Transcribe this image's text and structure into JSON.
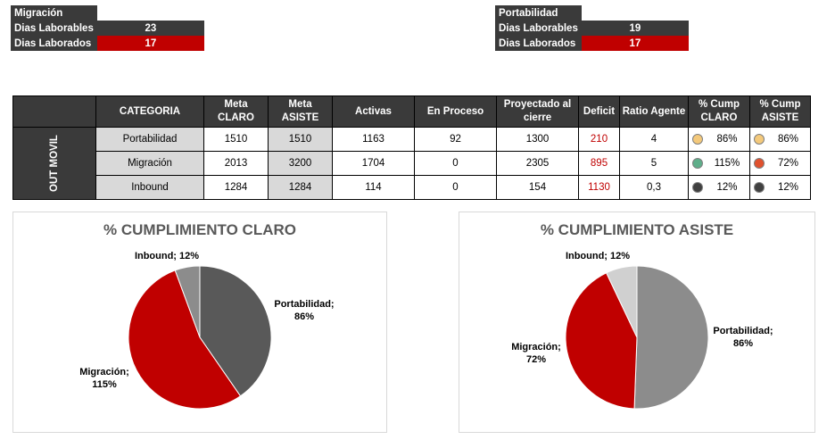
{
  "left_info": {
    "title": "Migración",
    "rows": [
      {
        "label": "Dias Laborables",
        "value": "23"
      },
      {
        "label": "Dias Laborados",
        "value": "17"
      }
    ]
  },
  "right_info": {
    "title": "Portabilidad",
    "rows": [
      {
        "label": "Dias Laborables",
        "value": "19"
      },
      {
        "label": "Dias Laborados",
        "value": "17"
      }
    ]
  },
  "table": {
    "group_label": "OUT MOVIL",
    "headers": {
      "categoria": "CATEGORIA",
      "meta_claro": [
        "Meta",
        "CLARO"
      ],
      "meta_asiste": [
        "Meta",
        "ASISTE"
      ],
      "activas": "Activas",
      "en_proceso": "En Proceso",
      "proyectado": [
        "Proyectado al",
        "cierre"
      ],
      "deficit": "Deficit",
      "ratio": "Ratio Agente",
      "cump_claro": [
        "% Cump",
        "CLARO"
      ],
      "cump_asiste": [
        "% Cump",
        "ASISTE"
      ]
    },
    "rows": [
      {
        "categoria": "Portabilidad",
        "meta_claro": "1510",
        "meta_asiste": "1510",
        "activas": "1163",
        "en_proceso": "92",
        "proyectado": "1300",
        "deficit": "210",
        "ratio": "4",
        "cump_claro": "86%",
        "cump_claro_color": "#f4c97b",
        "cump_asiste": "86%",
        "cump_asiste_color": "#f4c97b"
      },
      {
        "categoria": "Migración",
        "meta_claro": "2013",
        "meta_asiste": "3200",
        "activas": "1704",
        "en_proceso": "0",
        "proyectado": "2305",
        "deficit": "895",
        "ratio": "5",
        "cump_claro": "115%",
        "cump_claro_color": "#5fae8a",
        "cump_asiste": "72%",
        "cump_asiste_color": "#e0512e"
      },
      {
        "categoria": "Inbound",
        "meta_claro": "1284",
        "meta_asiste": "1284",
        "activas": "114",
        "en_proceso": "0",
        "proyectado": "154",
        "deficit": "1130",
        "ratio": "0,3",
        "cump_claro": "12%",
        "cump_claro_color": "#404040",
        "cump_asiste": "12%",
        "cump_asiste_color": "#404040"
      }
    ]
  },
  "chart_data": [
    {
      "type": "pie",
      "title": "% CUMPLIMIENTO CLARO",
      "slices": [
        {
          "name": "Portabilidad",
          "value": 86,
          "label": "Portabilidad;",
          "label2": "86%",
          "color": "#595959"
        },
        {
          "name": "Migración",
          "value": 115,
          "label": "Migración;",
          "label2": "115%",
          "color": "#c00000"
        },
        {
          "name": "Inbound",
          "value": 12,
          "label": "Inbound; 12%",
          "label2": "",
          "color": "#8c8c8c"
        }
      ]
    },
    {
      "type": "pie",
      "title": "% CUMPLIMIENTO ASISTE",
      "slices": [
        {
          "name": "Portabilidad",
          "value": 86,
          "label": "Portabilidad;",
          "label2": "86%",
          "color": "#8c8c8c"
        },
        {
          "name": "Migración",
          "value": 72,
          "label": "Migración;",
          "label2": "72%",
          "color": "#c00000"
        },
        {
          "name": "Inbound",
          "value": 12,
          "label": "Inbound; 12%",
          "label2": "",
          "color": "#d0d0d0"
        }
      ]
    }
  ]
}
